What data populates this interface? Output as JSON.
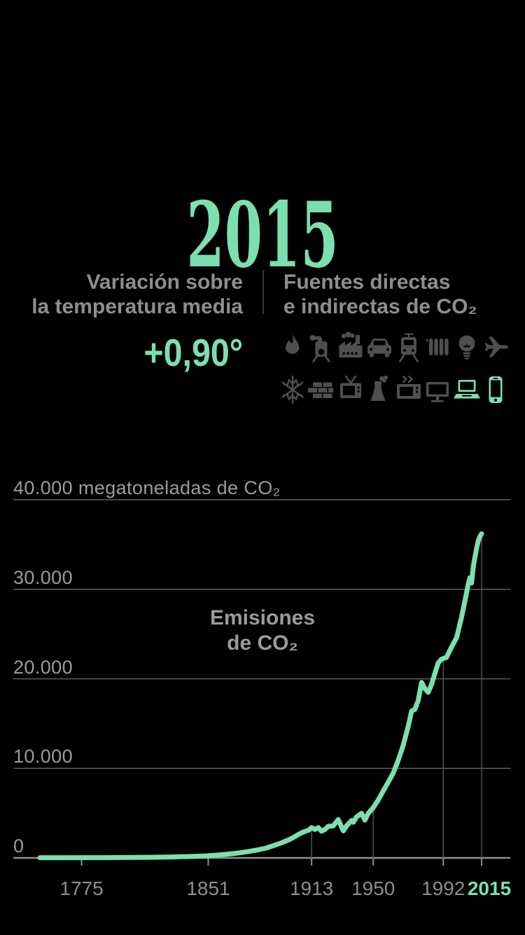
{
  "colors": {
    "accent": "#7CDFAF",
    "text_gray": "#8E8E8E",
    "label_gray": "#9B9B9B",
    "icon_gray": "#4F4F4F",
    "grid": "#5E5E5E",
    "axis": "#8F8F8F",
    "divider": "#2E4237",
    "background": "#000000"
  },
  "header": {
    "year": "2015",
    "temperature": {
      "line1": "Variación sobre",
      "line2": "la temperatura media",
      "value": "+0,90°"
    },
    "sources": {
      "line1": "Fuentes directas",
      "line2": "e indirectas de CO₂"
    },
    "icons": {
      "row1": [
        "flame",
        "boiler",
        "factory",
        "car",
        "tram",
        "radiator",
        "lightbulb",
        "plane"
      ],
      "row2": [
        "snowflake",
        "bricks",
        "tv",
        "cooling-tower",
        "microwave",
        "monitor",
        "laptop",
        "smartphone"
      ],
      "highlighted": [
        "laptop",
        "smartphone"
      ]
    }
  },
  "chart_data": {
    "type": "line",
    "title": "Emisiones de CO₂",
    "title_lines": [
      "Emisiones",
      "de CO₂"
    ],
    "unit": "megatoneladas de CO₂",
    "xlim": [
      1750,
      2015
    ],
    "ylim": [
      0,
      40000
    ],
    "grid": true,
    "line_color": "#7CDFAF",
    "y_ticks": [
      {
        "value": 0,
        "label": "0"
      },
      {
        "value": 10000,
        "label": "10.000"
      },
      {
        "value": 20000,
        "label": "20.000"
      },
      {
        "value": 30000,
        "label": "30.000"
      },
      {
        "value": 40000,
        "label": "40.000 megatoneladas de CO₂"
      }
    ],
    "x_ticks": [
      {
        "year": 1775,
        "label": "1775",
        "highlight": false
      },
      {
        "year": 1851,
        "label": "1851",
        "highlight": false
      },
      {
        "year": 1913,
        "label": "1913",
        "highlight": false
      },
      {
        "year": 1950,
        "label": "1950",
        "highlight": false
      },
      {
        "year": 1992,
        "label": "1992",
        "highlight": false
      },
      {
        "year": 2015,
        "label": "2015",
        "highlight": true
      }
    ],
    "series": [
      {
        "name": "Emisiones de CO₂ (megatoneladas)",
        "points": [
          [
            1750,
            15
          ],
          [
            1765,
            20
          ],
          [
            1780,
            28
          ],
          [
            1790,
            35
          ],
          [
            1800,
            45
          ],
          [
            1810,
            60
          ],
          [
            1820,
            80
          ],
          [
            1830,
            110
          ],
          [
            1840,
            160
          ],
          [
            1850,
            230
          ],
          [
            1855,
            290
          ],
          [
            1860,
            370
          ],
          [
            1865,
            460
          ],
          [
            1870,
            570
          ],
          [
            1875,
            710
          ],
          [
            1880,
            880
          ],
          [
            1885,
            1060
          ],
          [
            1890,
            1360
          ],
          [
            1895,
            1680
          ],
          [
            1900,
            2080
          ],
          [
            1903,
            2380
          ],
          [
            1906,
            2720
          ],
          [
            1909,
            2960
          ],
          [
            1911,
            3080
          ],
          [
            1913,
            3380
          ],
          [
            1915,
            3180
          ],
          [
            1917,
            3380
          ],
          [
            1919,
            2980
          ],
          [
            1921,
            3180
          ],
          [
            1923,
            3520
          ],
          [
            1926,
            3580
          ],
          [
            1929,
            4280
          ],
          [
            1932,
            3020
          ],
          [
            1934,
            3580
          ],
          [
            1937,
            4180
          ],
          [
            1938,
            3980
          ],
          [
            1940,
            4580
          ],
          [
            1943,
            4980
          ],
          [
            1945,
            4220
          ],
          [
            1947,
            4980
          ],
          [
            1950,
            5620
          ],
          [
            1953,
            6480
          ],
          [
            1956,
            7480
          ],
          [
            1959,
            8480
          ],
          [
            1962,
            9480
          ],
          [
            1965,
            10900
          ],
          [
            1968,
            12600
          ],
          [
            1971,
            14700
          ],
          [
            1973,
            16400
          ],
          [
            1975,
            16600
          ],
          [
            1977,
            17600
          ],
          [
            1979,
            19600
          ],
          [
            1981,
            18900
          ],
          [
            1983,
            18500
          ],
          [
            1985,
            19400
          ],
          [
            1987,
            20600
          ],
          [
            1989,
            21800
          ],
          [
            1991,
            22200
          ],
          [
            1994,
            22400
          ],
          [
            1996,
            23200
          ],
          [
            1998,
            23900
          ],
          [
            2000,
            24600
          ],
          [
            2003,
            26900
          ],
          [
            2005,
            28700
          ],
          [
            2007,
            30600
          ],
          [
            2008,
            31300
          ],
          [
            2009,
            30700
          ],
          [
            2010,
            32500
          ],
          [
            2011,
            33600
          ],
          [
            2012,
            34600
          ],
          [
            2013,
            35400
          ],
          [
            2014,
            35900
          ],
          [
            2015,
            36200
          ]
        ]
      }
    ]
  }
}
